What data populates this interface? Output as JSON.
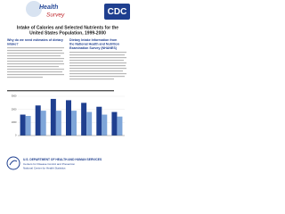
{
  "header": {
    "logo_top": "Health",
    "logo_bottom": "Survey",
    "agency": "CDC"
  },
  "title": [
    "Intake of Calories and Selected Nutrients for the",
    "United States Population, 1999-2000"
  ],
  "sections": [
    {
      "heading": [
        "Why do we need estimates of dietary",
        "intake?"
      ]
    },
    {
      "heading": [
        "Dietary Intake Information from",
        "the National Health and Nutrition",
        "Examination Survey (NHANES)"
      ]
    }
  ],
  "figure": {
    "ylim": [
      0,
      3000
    ],
    "yticks": [
      0,
      1000,
      2000,
      3000
    ],
    "series": [
      {
        "color": "#1f3f8f",
        "values": [
          1600,
          2300,
          2800,
          2700,
          2500,
          2200,
          1800
        ]
      },
      {
        "color": "#7fa6d9",
        "values": [
          1500,
          1900,
          1900,
          1900,
          1800,
          1600,
          1450
        ]
      }
    ]
  },
  "footer": [
    "U.S. DEPARTMENT OF HEALTH AND HUMAN SERVICES",
    "Centers for Disease Control and Prevention",
    "National Center for Health Statistics"
  ]
}
